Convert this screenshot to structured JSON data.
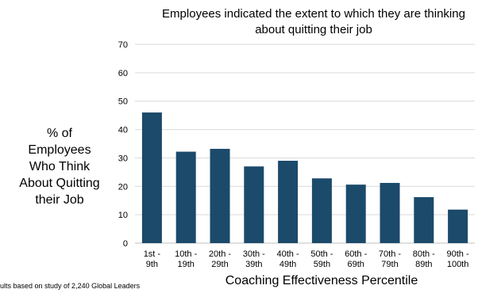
{
  "chart_data": {
    "type": "bar",
    "title": [
      "Employees indicated the extent to which they are thinking",
      "about quitting their job"
    ],
    "ylabel": [
      "% of",
      "Employees",
      "Who Think",
      "About Quitting",
      "their Job"
    ],
    "xlabel": "Coaching Effectiveness Percentile",
    "categories": [
      [
        "1st -",
        "9th"
      ],
      [
        "10th -",
        "19th"
      ],
      [
        "20th -",
        "29th"
      ],
      [
        "30th -",
        "39th"
      ],
      [
        "40th -",
        "49th"
      ],
      [
        "50th -",
        "59th"
      ],
      [
        "60th -",
        "69th"
      ],
      [
        "70th -",
        "79th"
      ],
      [
        "80th -",
        "89th"
      ],
      [
        "90th -",
        "100th"
      ]
    ],
    "values": [
      46,
      32.2,
      33.2,
      27,
      29,
      22.8,
      20.6,
      21.2,
      16.2,
      11.8
    ],
    "ylim": [
      0,
      70
    ],
    "yticks": [
      0,
      10,
      20,
      30,
      40,
      50,
      60,
      70
    ],
    "grid": true,
    "bar_color": "#1b4a6b",
    "grid_color": "#d9d9d9",
    "footnote": "ults based on study of 2,240 Global Leaders"
  }
}
